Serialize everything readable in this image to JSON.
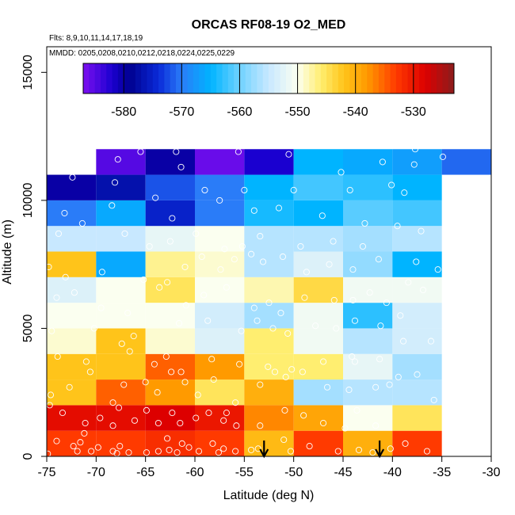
{
  "chart_data": {
    "type": "heatmap",
    "title": "ORCAS RF08-19 O2_MED",
    "flights_note": "Flts: 8,9,10,11,14,17,18,19",
    "dates_note": "MMDD: 0205,0208,0210,0212,0218,0224,0225,0229",
    "xlabel": "Latitude (deg N)",
    "ylabel": "Altitude (m)",
    "xlim": [
      -75,
      -30
    ],
    "ylim": [
      0,
      16000
    ],
    "x_ticks": [
      -75,
      -70,
      -65,
      -60,
      -55,
      -50,
      -45,
      -40,
      -35,
      -30
    ],
    "y_ticks": [
      0,
      5000,
      10000,
      15000
    ],
    "colorbar": {
      "min": -587,
      "max": -523,
      "ticks": [
        -580,
        -570,
        -560,
        -550,
        -540,
        -530
      ],
      "stops": [
        {
          "v": -587,
          "c": "#7d0ff0"
        },
        {
          "v": -582,
          "c": "#1a00d0"
        },
        {
          "v": -579,
          "c": "#00008f"
        },
        {
          "v": -574,
          "c": "#0a2ad8"
        },
        {
          "v": -570,
          "c": "#2a7cf8"
        },
        {
          "v": -565,
          "c": "#00b4ff"
        },
        {
          "v": -560,
          "c": "#6fd2ff"
        },
        {
          "v": -555,
          "c": "#c8e8ff"
        },
        {
          "v": -550,
          "c": "#fbfff0"
        },
        {
          "v": -546,
          "c": "#ffee70"
        },
        {
          "v": -542,
          "c": "#ffc41a"
        },
        {
          "v": -538,
          "c": "#ff9a00"
        },
        {
          "v": -533,
          "c": "#ff3a00"
        },
        {
          "v": -528,
          "c": "#dd0000"
        },
        {
          "v": -523,
          "c": "#8b1d1d"
        }
      ]
    },
    "lat_bins": [
      -75,
      -70,
      -65,
      -60,
      -55,
      -50,
      -45,
      -40,
      -35,
      -30
    ],
    "alt_bin_size": 1000,
    "cells": [
      {
        "lat": -75,
        "alt": 0,
        "v": -533
      },
      {
        "lat": -70,
        "alt": 0,
        "v": -533
      },
      {
        "lat": -65,
        "alt": 0,
        "v": -532
      },
      {
        "lat": -60,
        "alt": 0,
        "v": -533
      },
      {
        "lat": -55,
        "alt": 0,
        "v": -541
      },
      {
        "lat": -50,
        "alt": 0,
        "v": -533
      },
      {
        "lat": -45,
        "alt": 0,
        "v": -540
      },
      {
        "lat": -40,
        "alt": 0,
        "v": -533
      },
      {
        "lat": -75,
        "alt": 1000,
        "v": -529
      },
      {
        "lat": -70,
        "alt": 1000,
        "v": -529
      },
      {
        "lat": -65,
        "alt": 1000,
        "v": -528
      },
      {
        "lat": -60,
        "alt": 1000,
        "v": -530
      },
      {
        "lat": -55,
        "alt": 1000,
        "v": -537
      },
      {
        "lat": -50,
        "alt": 1000,
        "v": -539
      },
      {
        "lat": -45,
        "alt": 1000,
        "v": -550
      },
      {
        "lat": -40,
        "alt": 1000,
        "v": -545
      },
      {
        "lat": -75,
        "alt": 2000,
        "v": -542
      },
      {
        "lat": -70,
        "alt": 2000,
        "v": -535
      },
      {
        "lat": -65,
        "alt": 2000,
        "v": -538
      },
      {
        "lat": -60,
        "alt": 2000,
        "v": -545
      },
      {
        "lat": -55,
        "alt": 2000,
        "v": -540
      },
      {
        "lat": -50,
        "alt": 2000,
        "v": -557
      },
      {
        "lat": -45,
        "alt": 2000,
        "v": -556
      },
      {
        "lat": -40,
        "alt": 2000,
        "v": -556
      },
      {
        "lat": -75,
        "alt": 3000,
        "v": -542
      },
      {
        "lat": -70,
        "alt": 3000,
        "v": -542
      },
      {
        "lat": -65,
        "alt": 3000,
        "v": -535
      },
      {
        "lat": -60,
        "alt": 3000,
        "v": -538
      },
      {
        "lat": -55,
        "alt": 3000,
        "v": -546
      },
      {
        "lat": -50,
        "alt": 3000,
        "v": -546
      },
      {
        "lat": -45,
        "alt": 3000,
        "v": -552
      },
      {
        "lat": -40,
        "alt": 3000,
        "v": -557
      },
      {
        "lat": -75,
        "alt": 4000,
        "v": -549
      },
      {
        "lat": -70,
        "alt": 4000,
        "v": -542
      },
      {
        "lat": -65,
        "alt": 4000,
        "v": -549
      },
      {
        "lat": -60,
        "alt": 4000,
        "v": -553
      },
      {
        "lat": -55,
        "alt": 4000,
        "v": -546
      },
      {
        "lat": -50,
        "alt": 4000,
        "v": -551
      },
      {
        "lat": -45,
        "alt": 4000,
        "v": -556
      },
      {
        "lat": -40,
        "alt": 4000,
        "v": -554
      },
      {
        "lat": -75,
        "alt": 5000,
        "v": -550
      },
      {
        "lat": -70,
        "alt": 5000,
        "v": -550
      },
      {
        "lat": -65,
        "alt": 5000,
        "v": -550
      },
      {
        "lat": -60,
        "alt": 5000,
        "v": -554
      },
      {
        "lat": -55,
        "alt": 5000,
        "v": -557
      },
      {
        "lat": -50,
        "alt": 5000,
        "v": -551
      },
      {
        "lat": -45,
        "alt": 5000,
        "v": -563
      },
      {
        "lat": -40,
        "alt": 5000,
        "v": -554
      },
      {
        "lat": -75,
        "alt": 6000,
        "v": -553
      },
      {
        "lat": -70,
        "alt": 6000,
        "v": -550
      },
      {
        "lat": -65,
        "alt": 6000,
        "v": -545
      },
      {
        "lat": -60,
        "alt": 6000,
        "v": -550
      },
      {
        "lat": -55,
        "alt": 6000,
        "v": -548
      },
      {
        "lat": -50,
        "alt": 6000,
        "v": -544
      },
      {
        "lat": -45,
        "alt": 6000,
        "v": -551
      },
      {
        "lat": -40,
        "alt": 6000,
        "v": -551
      },
      {
        "lat": -75,
        "alt": 7000,
        "v": -542
      },
      {
        "lat": -70,
        "alt": 7000,
        "v": -566
      },
      {
        "lat": -65,
        "alt": 7000,
        "v": -547
      },
      {
        "lat": -60,
        "alt": 7000,
        "v": -549
      },
      {
        "lat": -55,
        "alt": 7000,
        "v": -556
      },
      {
        "lat": -50,
        "alt": 7000,
        "v": -553
      },
      {
        "lat": -45,
        "alt": 7000,
        "v": -558
      },
      {
        "lat": -40,
        "alt": 7000,
        "v": -565
      },
      {
        "lat": -75,
        "alt": 8000,
        "v": -555
      },
      {
        "lat": -70,
        "alt": 8000,
        "v": -555
      },
      {
        "lat": -65,
        "alt": 8000,
        "v": -552
      },
      {
        "lat": -60,
        "alt": 8000,
        "v": -550
      },
      {
        "lat": -55,
        "alt": 8000,
        "v": -556
      },
      {
        "lat": -50,
        "alt": 8000,
        "v": -556
      },
      {
        "lat": -45,
        "alt": 8000,
        "v": -557
      },
      {
        "lat": -40,
        "alt": 8000,
        "v": -556
      },
      {
        "lat": -75,
        "alt": 9000,
        "v": -570
      },
      {
        "lat": -70,
        "alt": 9000,
        "v": -566
      },
      {
        "lat": -65,
        "alt": 9000,
        "v": -575
      },
      {
        "lat": -60,
        "alt": 9000,
        "v": -570
      },
      {
        "lat": -55,
        "alt": 9000,
        "v": -564
      },
      {
        "lat": -50,
        "alt": 9000,
        "v": -565
      },
      {
        "lat": -45,
        "alt": 9000,
        "v": -561
      },
      {
        "lat": -40,
        "alt": 9000,
        "v": -562
      },
      {
        "lat": -75,
        "alt": 10000,
        "v": -580
      },
      {
        "lat": -70,
        "alt": 10000,
        "v": -577
      },
      {
        "lat": -65,
        "alt": 10000,
        "v": -572
      },
      {
        "lat": -60,
        "alt": 10000,
        "v": -570
      },
      {
        "lat": -55,
        "alt": 10000,
        "v": -565
      },
      {
        "lat": -50,
        "alt": 10000,
        "v": -562
      },
      {
        "lat": -45,
        "alt": 10000,
        "v": -563
      },
      {
        "lat": -40,
        "alt": 10000,
        "v": -565
      },
      {
        "lat": -70,
        "alt": 11000,
        "v": -585
      },
      {
        "lat": -65,
        "alt": 11000,
        "v": -580
      },
      {
        "lat": -60,
        "alt": 11000,
        "v": -586
      },
      {
        "lat": -55,
        "alt": 11000,
        "v": -582
      },
      {
        "lat": -50,
        "alt": 11000,
        "v": -565
      },
      {
        "lat": -45,
        "alt": 11000,
        "v": -566
      },
      {
        "lat": -40,
        "alt": 11000,
        "v": -567
      },
      {
        "lat": -35,
        "alt": 11000,
        "v": -571
      }
    ],
    "arrows": [
      -53,
      -41.3
    ],
    "sample_points": [
      [
        -74.9,
        100
      ],
      [
        -74.0,
        600
      ],
      [
        -72.3,
        400
      ],
      [
        -71.9,
        200
      ],
      [
        -71.6,
        550
      ],
      [
        -71.2,
        900
      ],
      [
        -70.5,
        200
      ],
      [
        -69.8,
        350
      ],
      [
        -68.3,
        200
      ],
      [
        -67.9,
        120
      ],
      [
        -67.6,
        400
      ],
      [
        -66.7,
        150
      ],
      [
        -64.9,
        150
      ],
      [
        -63.7,
        200
      ],
      [
        -62.8,
        700
      ],
      [
        -62.6,
        250
      ],
      [
        -61.8,
        150
      ],
      [
        -61.3,
        500
      ],
      [
        -60.6,
        350
      ],
      [
        -59.6,
        200
      ],
      [
        -58.2,
        500
      ],
      [
        -57.6,
        150
      ],
      [
        -57.1,
        300
      ],
      [
        -55.9,
        200
      ],
      [
        -54.3,
        250
      ],
      [
        -53.6,
        300
      ],
      [
        -51.0,
        650
      ],
      [
        -50.3,
        200
      ],
      [
        -48.4,
        400
      ],
      [
        -45.5,
        200
      ],
      [
        -43.4,
        250
      ],
      [
        -42.0,
        150
      ],
      [
        -40.2,
        300
      ],
      [
        -38.7,
        500
      ],
      [
        -36.5,
        200
      ],
      [
        -74.7,
        2000
      ],
      [
        -73.4,
        1700
      ],
      [
        -71.1,
        1300
      ],
      [
        -69.6,
        1500
      ],
      [
        -68.3,
        1200
      ],
      [
        -67.7,
        1900
      ],
      [
        -66.1,
        1400
      ],
      [
        -64.9,
        1800
      ],
      [
        -63.7,
        1300
      ],
      [
        -62.3,
        1700
      ],
      [
        -61.5,
        1300
      ],
      [
        -59.9,
        1500
      ],
      [
        -58.6,
        1700
      ],
      [
        -57.1,
        1400
      ],
      [
        -56.8,
        1700
      ],
      [
        -55.8,
        1200
      ],
      [
        -53.4,
        1200
      ],
      [
        -50.9,
        1800
      ],
      [
        -49.0,
        1600
      ],
      [
        -47.0,
        1300
      ],
      [
        -44.8,
        1100
      ],
      [
        -43.6,
        1800
      ],
      [
        -41.7,
        1200
      ],
      [
        -74.6,
        2400
      ],
      [
        -72.7,
        2700
      ],
      [
        -70.6,
        3300
      ],
      [
        -68.3,
        2100
      ],
      [
        -67.2,
        2800
      ],
      [
        -65.0,
        2900
      ],
      [
        -63.8,
        2500
      ],
      [
        -62.4,
        3300
      ],
      [
        -61.0,
        2900
      ],
      [
        -59.7,
        2400
      ],
      [
        -58.1,
        3000
      ],
      [
        -55.9,
        2100
      ],
      [
        -53.4,
        2800
      ],
      [
        -50.8,
        3100
      ],
      [
        -49.1,
        3300
      ],
      [
        -46.6,
        2700
      ],
      [
        -44.4,
        2600
      ],
      [
        -41.7,
        2700
      ],
      [
        -40.3,
        2800
      ],
      [
        -39.4,
        3100
      ],
      [
        -37.5,
        3200
      ],
      [
        -35.8,
        2200
      ],
      [
        -73.9,
        3900
      ],
      [
        -71.0,
        3700
      ],
      [
        -67.4,
        4400
      ],
      [
        -66.6,
        4100
      ],
      [
        -64.1,
        3600
      ],
      [
        -62.9,
        3900
      ],
      [
        -61.4,
        3300
      ],
      [
        -58.3,
        3800
      ],
      [
        -55.5,
        3600
      ],
      [
        -52.6,
        3500
      ],
      [
        -51.9,
        3300
      ],
      [
        -50.2,
        3400
      ],
      [
        -47.0,
        3700
      ],
      [
        -44.1,
        3900
      ],
      [
        -43.8,
        3700
      ],
      [
        -41.3,
        3800
      ],
      [
        -38.9,
        4500
      ],
      [
        -36.1,
        4500
      ],
      [
        -74.5,
        4900
      ],
      [
        -70.2,
        5000
      ],
      [
        -66.2,
        4700
      ],
      [
        -61.6,
        5200
      ],
      [
        -58.7,
        5300
      ],
      [
        -55.3,
        4900
      ],
      [
        -53.7,
        5300
      ],
      [
        -52.1,
        5000
      ],
      [
        -50.6,
        4800
      ],
      [
        -47.8,
        5100
      ],
      [
        -45.7,
        5000
      ],
      [
        -43.8,
        5300
      ],
      [
        -41.2,
        5100
      ],
      [
        -39.2,
        5500
      ],
      [
        -74.0,
        6200
      ],
      [
        -72.2,
        6400
      ],
      [
        -69.5,
        5800
      ],
      [
        -66.8,
        5600
      ],
      [
        -63.6,
        6600
      ],
      [
        -60.9,
        5900
      ],
      [
        -59.1,
        6300
      ],
      [
        -56.8,
        6600
      ],
      [
        -54.0,
        5800
      ],
      [
        -52.5,
        6000
      ],
      [
        -51.3,
        5600
      ],
      [
        -48.9,
        6200
      ],
      [
        -45.9,
        6100
      ],
      [
        -44.0,
        6100
      ],
      [
        -42.3,
        6400
      ],
      [
        -40.6,
        6000
      ],
      [
        -38.4,
        6800
      ],
      [
        -36.9,
        6500
      ],
      [
        -74.8,
        7400
      ],
      [
        -73.1,
        7000
      ],
      [
        -69.4,
        7200
      ],
      [
        -65.2,
        6900
      ],
      [
        -62.8,
        6800
      ],
      [
        -61.0,
        7400
      ],
      [
        -59.3,
        7800
      ],
      [
        -57.4,
        7300
      ],
      [
        -56.0,
        7700
      ],
      [
        -54.3,
        7900
      ],
      [
        -53.1,
        7600
      ],
      [
        -51.1,
        7800
      ],
      [
        -48.7,
        7200
      ],
      [
        -46.4,
        7500
      ],
      [
        -44.0,
        7300
      ],
      [
        -41.4,
        7700
      ],
      [
        -37.6,
        7600
      ],
      [
        -35.4,
        7300
      ],
      [
        -73.8,
        8700
      ],
      [
        -71.4,
        9100
      ],
      [
        -67.1,
        8700
      ],
      [
        -64.6,
        8200
      ],
      [
        -62.5,
        8400
      ],
      [
        -59.9,
        8700
      ],
      [
        -57.0,
        8100
      ],
      [
        -55.2,
        8200
      ],
      [
        -53.4,
        8600
      ],
      [
        -49.3,
        8200
      ],
      [
        -46.0,
        8400
      ],
      [
        -43.0,
        8200
      ],
      [
        -39.5,
        9000
      ],
      [
        -37.1,
        8800
      ],
      [
        -73.2,
        9500
      ],
      [
        -68.4,
        9800
      ],
      [
        -62.3,
        9300
      ],
      [
        -57.5,
        10000
      ],
      [
        -54.0,
        9600
      ],
      [
        -51.5,
        9700
      ],
      [
        -47.1,
        9400
      ],
      [
        -42.8,
        9100
      ],
      [
        -38.8,
        10300
      ],
      [
        -72.4,
        10900
      ],
      [
        -68.1,
        10700
      ],
      [
        -64.0,
        10100
      ],
      [
        -59.0,
        10400
      ],
      [
        -55.0,
        10400
      ],
      [
        -50.0,
        10400
      ],
      [
        -44.3,
        10400
      ],
      [
        -40.1,
        10600
      ],
      [
        -37.8,
        11400
      ],
      [
        -67.8,
        11600
      ],
      [
        -65.5,
        11900
      ],
      [
        -61.9,
        11900
      ],
      [
        -61.4,
        11300
      ],
      [
        -55.6,
        11900
      ],
      [
        -50.5,
        11800
      ],
      [
        -45.2,
        11100
      ],
      [
        -41.0,
        11500
      ],
      [
        -37.7,
        12000
      ],
      [
        -34.9,
        11700
      ]
    ]
  }
}
